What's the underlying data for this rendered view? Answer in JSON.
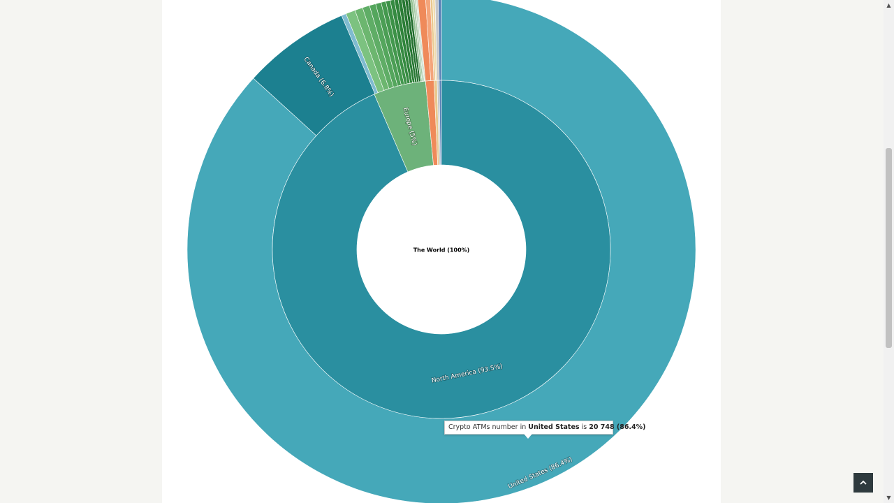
{
  "chart_data": {
    "type": "sunburst",
    "center": {
      "label": "The World (100%)"
    },
    "inner_ring": [
      {
        "name": "North America",
        "label": "North America (93.5%)",
        "value": 93.5,
        "color": "#2a8fa0"
      },
      {
        "name": "Europe",
        "label": "Europe (5%)",
        "value": 5.0,
        "color": "#6db27a"
      },
      {
        "name": "",
        "label": "",
        "value": 0.8,
        "color": "#ef8a5a"
      },
      {
        "name": "",
        "label": "",
        "value": 0.3,
        "color": "#e9c98f"
      },
      {
        "name": "",
        "label": "",
        "value": 0.2,
        "color": "#c7c7c7"
      },
      {
        "name": "",
        "label": "",
        "value": 0.2,
        "color": "#5a7fb5"
      }
    ],
    "outer_ring": [
      {
        "name": "United States",
        "label": "United States (86.4%)",
        "value": 86.4,
        "color": "#45a8b9"
      },
      {
        "name": "Canada",
        "label": "Canada (6.8%)",
        "value": 6.8,
        "color": "#1c8090"
      },
      {
        "name": "",
        "label": "",
        "value": 0.3,
        "color": "#7fbbd0"
      },
      {
        "name": "",
        "label": "",
        "value": 0.6,
        "color": "#7cc280"
      },
      {
        "name": "",
        "label": "",
        "value": 0.5,
        "color": "#6cb66f"
      },
      {
        "name": "",
        "label": "",
        "value": 0.45,
        "color": "#5fad66"
      },
      {
        "name": "",
        "label": "",
        "value": 0.4,
        "color": "#54a65d"
      },
      {
        "name": "",
        "label": "",
        "value": 0.35,
        "color": "#4b9e55"
      },
      {
        "name": "",
        "label": "",
        "value": 0.3,
        "color": "#43984e"
      },
      {
        "name": "",
        "label": "",
        "value": 0.28,
        "color": "#3c9147"
      },
      {
        "name": "",
        "label": "",
        "value": 0.26,
        "color": "#358a41"
      },
      {
        "name": "",
        "label": "",
        "value": 0.24,
        "color": "#2f843b"
      },
      {
        "name": "",
        "label": "",
        "value": 0.22,
        "color": "#2a7d36"
      },
      {
        "name": "",
        "label": "",
        "value": 0.2,
        "color": "#267732"
      },
      {
        "name": "",
        "label": "",
        "value": 0.18,
        "color": "#22712e"
      },
      {
        "name": "",
        "label": "",
        "value": 0.16,
        "color": "#1f6b2b"
      },
      {
        "name": "",
        "label": "",
        "value": 0.14,
        "color": "#8fbf8f"
      },
      {
        "name": "",
        "label": "",
        "value": 0.12,
        "color": "#a5c9a5"
      },
      {
        "name": "",
        "label": "",
        "value": 0.1,
        "color": "#bcd6bc"
      },
      {
        "name": "",
        "label": "",
        "value": 0.1,
        "color": "#cfe0cf"
      },
      {
        "name": "",
        "label": "",
        "value": 0.5,
        "color": "#ef8a5a"
      },
      {
        "name": "",
        "label": "",
        "value": 0.3,
        "color": "#f4a57b"
      },
      {
        "name": "",
        "label": "",
        "value": 0.15,
        "color": "#e9c98f"
      },
      {
        "name": "",
        "label": "",
        "value": 0.15,
        "color": "#f0dcb0"
      },
      {
        "name": "",
        "label": "",
        "value": 0.2,
        "color": "#c7c7c7"
      },
      {
        "name": "",
        "label": "",
        "value": 0.2,
        "color": "#5a7fb5"
      }
    ]
  },
  "tooltip": {
    "prefix": "Crypto ATMs number in",
    "country": "United States",
    "middle": "is",
    "value": "20 748 (86.4%)"
  },
  "colors": {
    "page_background": "#f5f5f2",
    "content_background": "#ffffff",
    "back_to_top": "#2e3a3e"
  },
  "icons": {
    "back_to_top": "chevron-up-icon",
    "scroll_up": "scroll-up-arrow-icon",
    "scroll_down": "scroll-down-arrow-icon"
  }
}
